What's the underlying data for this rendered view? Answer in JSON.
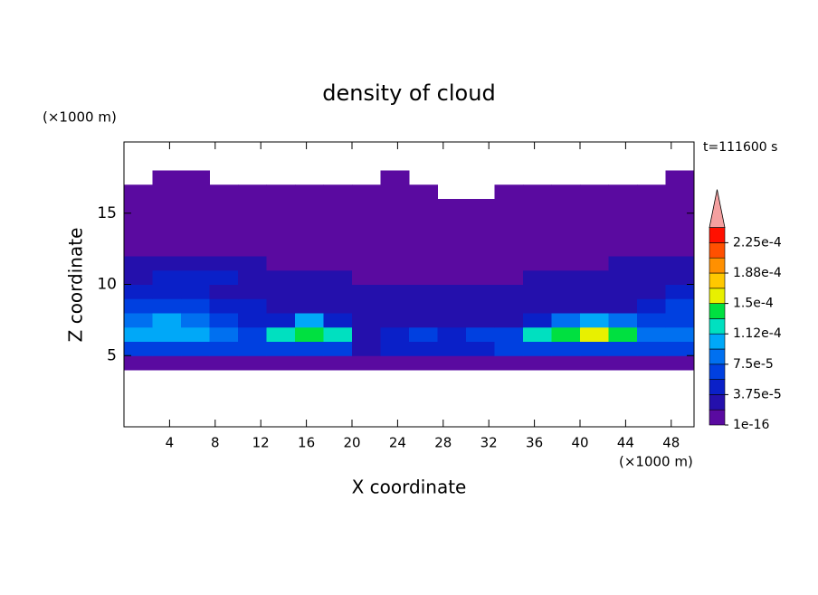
{
  "chart_data": {
    "type": "contour",
    "title": "density of cloud",
    "x_label": "X coordinate",
    "y_label": "Z coordinate",
    "x_unit": "(×1000 m)",
    "y_unit": "(×1000 m)",
    "annotation": "t=111600 s",
    "xlim": [
      0,
      50
    ],
    "ylim": [
      0,
      20
    ],
    "xticks": [
      4,
      8,
      12,
      16,
      20,
      24,
      28,
      32,
      36,
      40,
      44,
      48
    ],
    "yticks": [
      5,
      10,
      15
    ],
    "levels": [
      1e-16,
      1.875e-05,
      3.75e-05,
      5.625e-05,
      7.5e-05,
      9.375e-05,
      0.0001125,
      0.00013125,
      0.00015,
      0.00016875,
      0.0001875,
      0.00020625,
      0.000225,
      0.00024375
    ],
    "colors": [
      "#5a0aa0",
      "#2410ac",
      "#0a20c8",
      "#0040e0",
      "#0070f0",
      "#00a8f8",
      "#00e0c0",
      "#00e040",
      "#e8f000",
      "#ffc800",
      "#ff9000",
      "#ff5000",
      "#ff1000"
    ],
    "extend_color": "#f4a0a0",
    "colorbar_ticks": [
      {
        "value": 1e-16,
        "label": "1e-16"
      },
      {
        "value": 3.75e-05,
        "label": "3.75e-5"
      },
      {
        "value": 7.5e-05,
        "label": "7.5e-5"
      },
      {
        "value": 0.0001125,
        "label": "1.12e-4"
      },
      {
        "value": 0.00015,
        "label": "1.5e-4"
      },
      {
        "value": 0.0001875,
        "label": "1.88e-4"
      },
      {
        "value": 0.000225,
        "label": "2.25e-4"
      }
    ],
    "x_bins": [
      0,
      2.5,
      5,
      7.5,
      10,
      12.5,
      15,
      17.5,
      20,
      22.5,
      25,
      27.5,
      30,
      32.5,
      35,
      37.5,
      40,
      42.5,
      45,
      47.5,
      50
    ],
    "z_bins": [
      4,
      5,
      6,
      7,
      8,
      9,
      10,
      11,
      12,
      13,
      14,
      15,
      16,
      17,
      18
    ],
    "values": [
      [
        1e-05,
        1e-05,
        1e-05,
        1e-05,
        1e-05,
        1e-05,
        1e-05,
        1e-05,
        1e-05,
        1e-05,
        1e-05,
        1e-05,
        1e-05,
        1e-05,
        1e-05,
        1e-05,
        1e-05,
        1e-05,
        1e-05,
        1e-05
      ],
      [
        6.5e-05,
        6.5e-05,
        6.5e-05,
        6.5e-05,
        6.5e-05,
        6.5e-05,
        6.5e-05,
        6.5e-05,
        3e-05,
        4.5e-05,
        4.5e-05,
        4.5e-05,
        4.5e-05,
        6.5e-05,
        6.5e-05,
        6.5e-05,
        6.5e-05,
        6.5e-05,
        6.5e-05,
        6.5e-05
      ],
      [
        0.000105,
        0.000105,
        0.000105,
        8.5e-05,
        6.5e-05,
        0.00012,
        0.00014,
        0.00012,
        3e-05,
        4.5e-05,
        6.5e-05,
        4.5e-05,
        6.5e-05,
        6.5e-05,
        0.00012,
        0.00014,
        0.00016,
        0.00014,
        8.5e-05,
        8.5e-05
      ],
      [
        8.5e-05,
        0.000105,
        8.5e-05,
        6.5e-05,
        4.5e-05,
        4.5e-05,
        0.000105,
        4.5e-05,
        3e-05,
        3e-05,
        3e-05,
        3e-05,
        3e-05,
        3e-05,
        4.5e-05,
        8.5e-05,
        0.000105,
        8.5e-05,
        6.5e-05,
        6.5e-05
      ],
      [
        6.5e-05,
        6.5e-05,
        6.5e-05,
        4.5e-05,
        4.5e-05,
        3e-05,
        3e-05,
        3e-05,
        3e-05,
        3e-05,
        3e-05,
        3e-05,
        3e-05,
        3e-05,
        3e-05,
        3e-05,
        3e-05,
        3e-05,
        4.5e-05,
        6.5e-05
      ],
      [
        4.5e-05,
        4.5e-05,
        4.5e-05,
        3e-05,
        3e-05,
        3e-05,
        3e-05,
        3e-05,
        3e-05,
        3e-05,
        3e-05,
        3e-05,
        3e-05,
        3e-05,
        3e-05,
        3e-05,
        3e-05,
        3e-05,
        3e-05,
        4.5e-05
      ],
      [
        3e-05,
        4.5e-05,
        4.5e-05,
        4.5e-05,
        3e-05,
        3e-05,
        3e-05,
        3e-05,
        1e-05,
        1e-05,
        1e-05,
        1e-05,
        1e-05,
        1e-05,
        3e-05,
        3e-05,
        3e-05,
        3e-05,
        3e-05,
        3e-05
      ],
      [
        3e-05,
        3e-05,
        3e-05,
        3e-05,
        3e-05,
        1e-05,
        1e-05,
        1e-05,
        1e-05,
        1e-05,
        1e-05,
        1e-05,
        1e-05,
        1e-05,
        1e-05,
        1e-05,
        1e-05,
        3e-05,
        3e-05,
        3e-05
      ],
      [
        1e-05,
        1e-05,
        1e-05,
        1e-05,
        1e-05,
        1e-05,
        1e-05,
        1e-05,
        1e-05,
        1e-05,
        1e-05,
        1e-05,
        1e-05,
        1e-05,
        1e-05,
        1e-05,
        1e-05,
        1e-05,
        1e-05,
        1e-05
      ],
      [
        1e-05,
        1e-05,
        1e-05,
        1e-05,
        1e-05,
        1e-05,
        1e-05,
        1e-05,
        1e-05,
        1e-05,
        1e-05,
        1e-05,
        1e-05,
        1e-05,
        1e-05,
        1e-05,
        1e-05,
        1e-05,
        1e-05,
        1e-05
      ],
      [
        1e-05,
        1e-05,
        1e-05,
        1e-05,
        1e-05,
        1e-05,
        1e-05,
        1e-05,
        1e-05,
        1e-05,
        1e-05,
        1e-05,
        1e-05,
        1e-05,
        1e-05,
        1e-05,
        1e-05,
        1e-05,
        1e-05,
        1e-05
      ],
      [
        1e-05,
        1e-05,
        1e-05,
        1e-05,
        1e-05,
        1e-05,
        1e-05,
        1e-05,
        1e-05,
        1e-05,
        1e-05,
        1e-05,
        1e-05,
        1e-05,
        1e-05,
        1e-05,
        1e-05,
        1e-05,
        1e-05,
        1e-05
      ],
      [
        1e-05,
        1e-05,
        1e-05,
        1e-05,
        1e-05,
        1e-05,
        1e-05,
        1e-05,
        1e-05,
        1e-05,
        1e-05,
        null,
        null,
        1e-05,
        1e-05,
        1e-05,
        1e-05,
        1e-05,
        1e-05,
        1e-05
      ],
      [
        null,
        1e-05,
        1e-05,
        null,
        null,
        null,
        null,
        null,
        null,
        1e-05,
        null,
        null,
        null,
        null,
        null,
        null,
        null,
        null,
        null,
        1e-05
      ]
    ]
  }
}
